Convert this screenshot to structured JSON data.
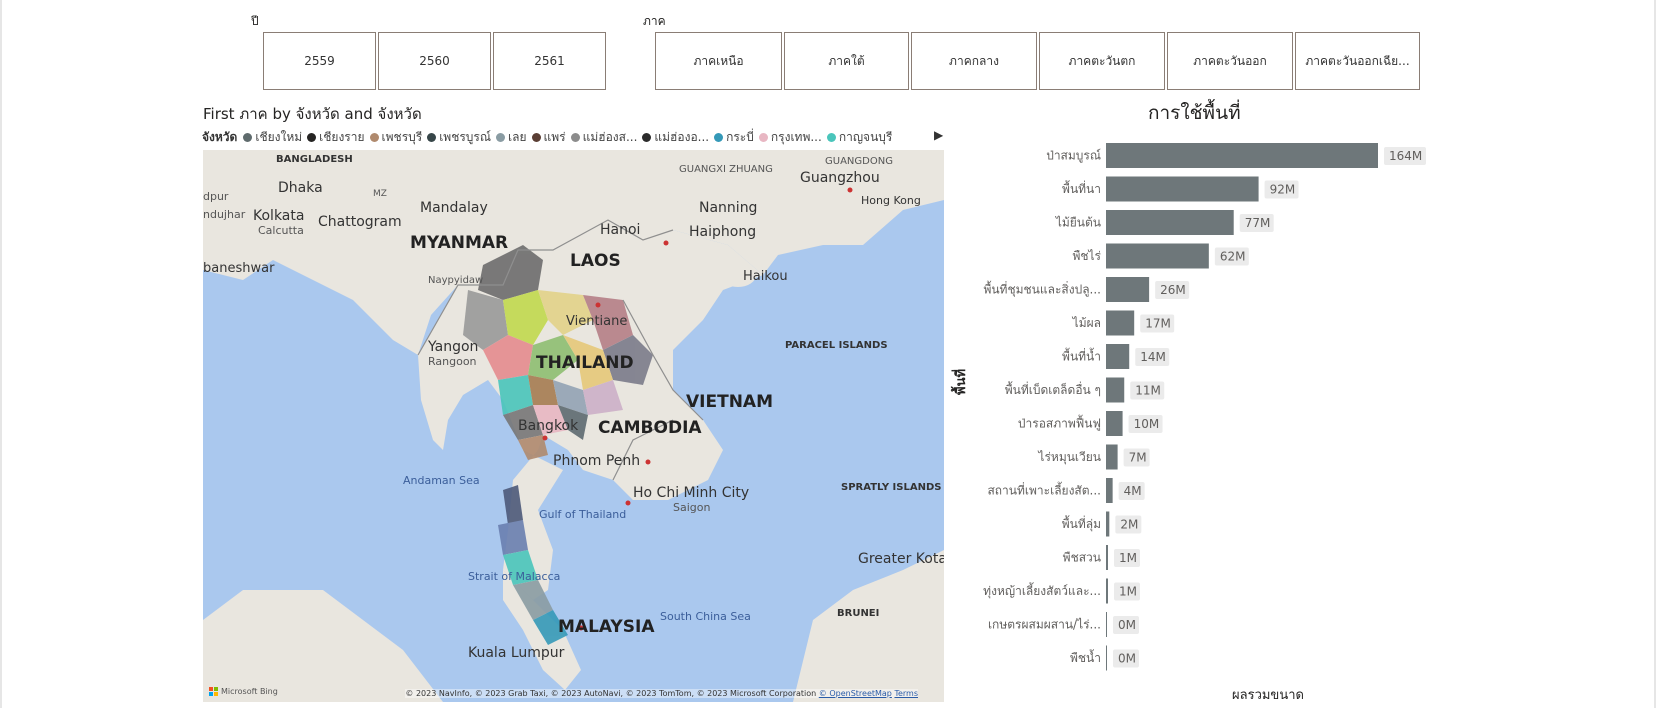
{
  "slicer_year": {
    "title": "ปี",
    "tiles": [
      "2559",
      "2560",
      "2561"
    ]
  },
  "slicer_region": {
    "title": "ภาค",
    "tiles": [
      "ภาคเหนือ",
      "ภาคใต้",
      "ภาคกลาง",
      "ภาคตะวันตก",
      "ภาคตะวันออก",
      "ภาคตะวันออกเฉีย..."
    ]
  },
  "map_visual": {
    "title": "First ภาค by จังหวัด and จังหวัด",
    "legend_title": "จังหวัด",
    "legend": [
      {
        "name": "เชียงใหม่",
        "color": "#5f6b6d"
      },
      {
        "name": "เชียงราย",
        "color": "#252423"
      },
      {
        "name": "เพชรบุรี",
        "color": "#b08a6e"
      },
      {
        "name": "เพชรบูรณ์",
        "color": "#374649"
      },
      {
        "name": "เลย",
        "color": "#8a9ca3"
      },
      {
        "name": "แพร่",
        "color": "#5a3e34"
      },
      {
        "name": "แม่ฮ่องส...",
        "color": "#8c8c8c"
      },
      {
        "name": "แม่ฮ่องอ...",
        "color": "#2b2b2b"
      },
      {
        "name": "กระบี่",
        "color": "#3599b8"
      },
      {
        "name": "กรุงเทพ...",
        "color": "#e8b7c3"
      },
      {
        "name": "กาญจนบุรี",
        "color": "#4ac5bb"
      }
    ],
    "labels": {
      "bangladesh": "BANGLADESH",
      "dhaka": "Dhaka",
      "kolkata": "Kolkata",
      "calcutta": "Calcutta",
      "chattogram": "Chattogram",
      "mandalay": "Mandalay",
      "myanmar": "MYANMAR",
      "laos": "LAOS",
      "hanoi": "Hanoi",
      "haiphong": "Haiphong",
      "haikou": "Haikou",
      "nanning": "Nanning",
      "guangxi": "GUANGXI ZHUANG",
      "guangdong": "GUANGDONG",
      "guangzhou": "Guangzhou",
      "hongkong": "Hong Kong",
      "naypyidaw": "Naypyidaw",
      "yangon": "Yangon",
      "rangoon": "Rangoon",
      "vientiane": "Vientiane",
      "thailand": "THAILAND",
      "bangkok": "Bangkok",
      "vietnam": "VIETNAM",
      "cambodia": "CAMBODIA",
      "phnompenh": "Phnom Penh",
      "hochiminh": "Ho Chi Minh City",
      "saigon": "Saigon",
      "paracel": "PARACEL ISLANDS",
      "spratly": "SPRATLY ISLANDS",
      "andaman": "Andaman Sea",
      "gulf": "Gulf of Thailand",
      "strait": "Strait of Malacca",
      "southchina": "South China Sea",
      "malaysia": "MALAYSIA",
      "kualalumpur": "Kuala Lumpur",
      "brunei": "BRUNEI",
      "kota": "Greater Kota Kinabalu",
      "baneshwar": "baneshwar",
      "dpur": "dpur",
      "ndujhar": "ndujhar",
      "mz": "MZ"
    },
    "bing": "Microsoft Bing",
    "attribution": "© 2023 NavInfo, © 2023 Grab Taxi, © 2023 AutoNavi, © 2023 TomTom, © 2023 Microsoft Corporation",
    "osm": "© OpenStreetMap",
    "terms": "Terms"
  },
  "chart_data": {
    "type": "bar",
    "orientation": "horizontal",
    "title": "การใช้พื้นที่",
    "xlabel": "ผลรวมขนาด",
    "ylabel": "พื้นที่",
    "bar_color": "#6e777a",
    "categories": [
      "ป่าสมบูรณ์",
      "พื้นที่นา",
      "ไม้ยืนต้น",
      "พืชไร่",
      "พื้นที่ชุมชนและสิ่งปลู...",
      "ไม้ผล",
      "พื้นที่น้ำ",
      "พื้นที่เบ็ดเตล็ดอื่น ๆ",
      "ป่ารอสภาพฟื้นฟู",
      "ไร่หมุนเวียน",
      "สถานที่เพาะเลี้ยงสัต...",
      "พื้นที่ลุ่ม",
      "พืชสวน",
      "ทุ่งหญ้าเลี้ยงสัตว์และ...",
      "เกษตรผสมผสาน/ไร่...",
      "พืชน้ำ"
    ],
    "values": [
      164,
      92,
      77,
      62,
      26,
      17,
      14,
      11,
      10,
      7,
      4,
      2,
      1,
      1,
      0,
      0
    ],
    "value_labels": [
      "164M",
      "92M",
      "77M",
      "62M",
      "26M",
      "17M",
      "14M",
      "11M",
      "10M",
      "7M",
      "4M",
      "2M",
      "1M",
      "1M",
      "0M",
      "0M"
    ],
    "xlim": [
      0,
      164
    ]
  }
}
